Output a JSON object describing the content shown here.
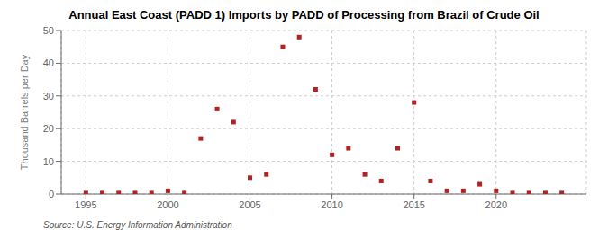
{
  "chart_data": {
    "type": "scatter",
    "title": "Annual East Coast (PADD 1) Imports by PADD of Processing from Brazil of Crude Oil",
    "ylabel": "Thousand Barrels per Day",
    "source": "Source: U.S. Energy Information Administration",
    "x": [
      1995,
      1996,
      1997,
      1998,
      1999,
      2000,
      2001,
      2002,
      2003,
      2004,
      2005,
      2006,
      2007,
      2008,
      2009,
      2010,
      2011,
      2012,
      2013,
      2014,
      2015,
      2016,
      2017,
      2018,
      2019,
      2020,
      2021,
      2022,
      2023,
      2024
    ],
    "values": [
      0.3,
      0.3,
      0.3,
      0.3,
      0.3,
      1.0,
      0.3,
      17.0,
      26.0,
      22.0,
      5.0,
      6.0,
      45.0,
      48.0,
      32.0,
      12.0,
      14.0,
      6.0,
      4.0,
      14.0,
      28.0,
      4.0,
      1.0,
      1.0,
      3.0,
      1.0,
      0.3,
      0.3,
      0.3,
      0.3
    ],
    "color": "#b22222",
    "marker": "square",
    "xlim": [
      1993.5,
      2025.5
    ],
    "ylim": [
      0,
      50
    ],
    "xticks": [
      1995,
      2000,
      2005,
      2010,
      2015,
      2020
    ],
    "yticks": [
      0,
      10,
      20,
      30,
      40,
      50
    ],
    "grid": true
  }
}
